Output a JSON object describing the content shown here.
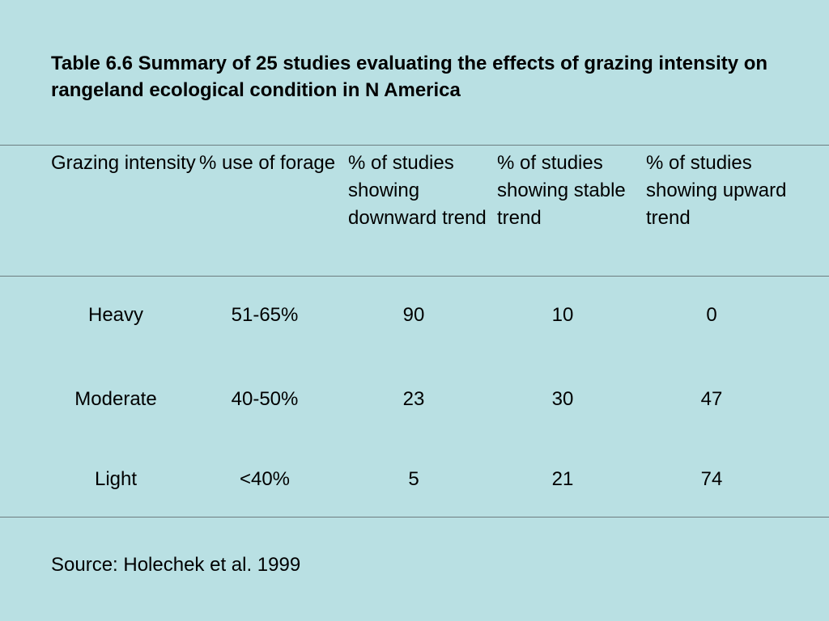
{
  "title": "Table 6.6 Summary of 25 studies evaluating the effects of grazing intensity on rangeland ecological condition in N America",
  "table": {
    "headers": [
      "Grazing intensity",
      "% use of forage",
      "% of studies showing downward trend",
      "% of studies showing stable trend",
      "% of studies showing upward trend"
    ],
    "rows": [
      [
        "Heavy",
        "51-65%",
        "90",
        "10",
        "0"
      ],
      [
        "Moderate",
        "40-50%",
        "23",
        "30",
        "47"
      ],
      [
        "Light",
        "<40%",
        "5",
        "21",
        "74"
      ]
    ]
  },
  "source": "Source: Holechek et al. 1999",
  "colors": {
    "background": "#b9e0e3",
    "rule": "#6d7d80",
    "text": "#000000"
  }
}
